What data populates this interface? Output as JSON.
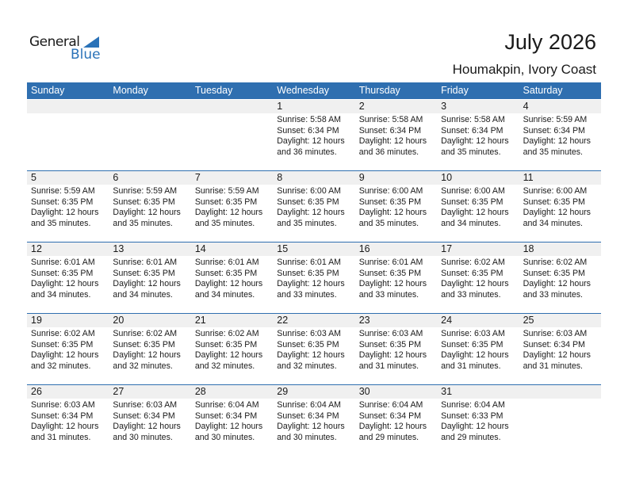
{
  "logo": {
    "line1": "General",
    "line2": "Blue"
  },
  "title": "July 2026",
  "location": "Houmakpin, Ivory Coast",
  "colors": {
    "header": "#2f6fb0",
    "band": "#f0f0f0",
    "logo_blue": "#2a72b8"
  },
  "weekdays": [
    "Sunday",
    "Monday",
    "Tuesday",
    "Wednesday",
    "Thursday",
    "Friday",
    "Saturday"
  ],
  "weeks": [
    [
      null,
      null,
      null,
      {
        "day": "1",
        "sunrise": "Sunrise: 5:58 AM",
        "sunset": "Sunset: 6:34 PM",
        "daylight1": "Daylight: 12 hours",
        "daylight2": "and 36 minutes."
      },
      {
        "day": "2",
        "sunrise": "Sunrise: 5:58 AM",
        "sunset": "Sunset: 6:34 PM",
        "daylight1": "Daylight: 12 hours",
        "daylight2": "and 36 minutes."
      },
      {
        "day": "3",
        "sunrise": "Sunrise: 5:58 AM",
        "sunset": "Sunset: 6:34 PM",
        "daylight1": "Daylight: 12 hours",
        "daylight2": "and 35 minutes."
      },
      {
        "day": "4",
        "sunrise": "Sunrise: 5:59 AM",
        "sunset": "Sunset: 6:34 PM",
        "daylight1": "Daylight: 12 hours",
        "daylight2": "and 35 minutes."
      }
    ],
    [
      {
        "day": "5",
        "sunrise": "Sunrise: 5:59 AM",
        "sunset": "Sunset: 6:35 PM",
        "daylight1": "Daylight: 12 hours",
        "daylight2": "and 35 minutes."
      },
      {
        "day": "6",
        "sunrise": "Sunrise: 5:59 AM",
        "sunset": "Sunset: 6:35 PM",
        "daylight1": "Daylight: 12 hours",
        "daylight2": "and 35 minutes."
      },
      {
        "day": "7",
        "sunrise": "Sunrise: 5:59 AM",
        "sunset": "Sunset: 6:35 PM",
        "daylight1": "Daylight: 12 hours",
        "daylight2": "and 35 minutes."
      },
      {
        "day": "8",
        "sunrise": "Sunrise: 6:00 AM",
        "sunset": "Sunset: 6:35 PM",
        "daylight1": "Daylight: 12 hours",
        "daylight2": "and 35 minutes."
      },
      {
        "day": "9",
        "sunrise": "Sunrise: 6:00 AM",
        "sunset": "Sunset: 6:35 PM",
        "daylight1": "Daylight: 12 hours",
        "daylight2": "and 35 minutes."
      },
      {
        "day": "10",
        "sunrise": "Sunrise: 6:00 AM",
        "sunset": "Sunset: 6:35 PM",
        "daylight1": "Daylight: 12 hours",
        "daylight2": "and 34 minutes."
      },
      {
        "day": "11",
        "sunrise": "Sunrise: 6:00 AM",
        "sunset": "Sunset: 6:35 PM",
        "daylight1": "Daylight: 12 hours",
        "daylight2": "and 34 minutes."
      }
    ],
    [
      {
        "day": "12",
        "sunrise": "Sunrise: 6:01 AM",
        "sunset": "Sunset: 6:35 PM",
        "daylight1": "Daylight: 12 hours",
        "daylight2": "and 34 minutes."
      },
      {
        "day": "13",
        "sunrise": "Sunrise: 6:01 AM",
        "sunset": "Sunset: 6:35 PM",
        "daylight1": "Daylight: 12 hours",
        "daylight2": "and 34 minutes."
      },
      {
        "day": "14",
        "sunrise": "Sunrise: 6:01 AM",
        "sunset": "Sunset: 6:35 PM",
        "daylight1": "Daylight: 12 hours",
        "daylight2": "and 34 minutes."
      },
      {
        "day": "15",
        "sunrise": "Sunrise: 6:01 AM",
        "sunset": "Sunset: 6:35 PM",
        "daylight1": "Daylight: 12 hours",
        "daylight2": "and 33 minutes."
      },
      {
        "day": "16",
        "sunrise": "Sunrise: 6:01 AM",
        "sunset": "Sunset: 6:35 PM",
        "daylight1": "Daylight: 12 hours",
        "daylight2": "and 33 minutes."
      },
      {
        "day": "17",
        "sunrise": "Sunrise: 6:02 AM",
        "sunset": "Sunset: 6:35 PM",
        "daylight1": "Daylight: 12 hours",
        "daylight2": "and 33 minutes."
      },
      {
        "day": "18",
        "sunrise": "Sunrise: 6:02 AM",
        "sunset": "Sunset: 6:35 PM",
        "daylight1": "Daylight: 12 hours",
        "daylight2": "and 33 minutes."
      }
    ],
    [
      {
        "day": "19",
        "sunrise": "Sunrise: 6:02 AM",
        "sunset": "Sunset: 6:35 PM",
        "daylight1": "Daylight: 12 hours",
        "daylight2": "and 32 minutes."
      },
      {
        "day": "20",
        "sunrise": "Sunrise: 6:02 AM",
        "sunset": "Sunset: 6:35 PM",
        "daylight1": "Daylight: 12 hours",
        "daylight2": "and 32 minutes."
      },
      {
        "day": "21",
        "sunrise": "Sunrise: 6:02 AM",
        "sunset": "Sunset: 6:35 PM",
        "daylight1": "Daylight: 12 hours",
        "daylight2": "and 32 minutes."
      },
      {
        "day": "22",
        "sunrise": "Sunrise: 6:03 AM",
        "sunset": "Sunset: 6:35 PM",
        "daylight1": "Daylight: 12 hours",
        "daylight2": "and 32 minutes."
      },
      {
        "day": "23",
        "sunrise": "Sunrise: 6:03 AM",
        "sunset": "Sunset: 6:35 PM",
        "daylight1": "Daylight: 12 hours",
        "daylight2": "and 31 minutes."
      },
      {
        "day": "24",
        "sunrise": "Sunrise: 6:03 AM",
        "sunset": "Sunset: 6:35 PM",
        "daylight1": "Daylight: 12 hours",
        "daylight2": "and 31 minutes."
      },
      {
        "day": "25",
        "sunrise": "Sunrise: 6:03 AM",
        "sunset": "Sunset: 6:34 PM",
        "daylight1": "Daylight: 12 hours",
        "daylight2": "and 31 minutes."
      }
    ],
    [
      {
        "day": "26",
        "sunrise": "Sunrise: 6:03 AM",
        "sunset": "Sunset: 6:34 PM",
        "daylight1": "Daylight: 12 hours",
        "daylight2": "and 31 minutes."
      },
      {
        "day": "27",
        "sunrise": "Sunrise: 6:03 AM",
        "sunset": "Sunset: 6:34 PM",
        "daylight1": "Daylight: 12 hours",
        "daylight2": "and 30 minutes."
      },
      {
        "day": "28",
        "sunrise": "Sunrise: 6:04 AM",
        "sunset": "Sunset: 6:34 PM",
        "daylight1": "Daylight: 12 hours",
        "daylight2": "and 30 minutes."
      },
      {
        "day": "29",
        "sunrise": "Sunrise: 6:04 AM",
        "sunset": "Sunset: 6:34 PM",
        "daylight1": "Daylight: 12 hours",
        "daylight2": "and 30 minutes."
      },
      {
        "day": "30",
        "sunrise": "Sunrise: 6:04 AM",
        "sunset": "Sunset: 6:34 PM",
        "daylight1": "Daylight: 12 hours",
        "daylight2": "and 29 minutes."
      },
      {
        "day": "31",
        "sunrise": "Sunrise: 6:04 AM",
        "sunset": "Sunset: 6:33 PM",
        "daylight1": "Daylight: 12 hours",
        "daylight2": "and 29 minutes."
      },
      null
    ]
  ]
}
